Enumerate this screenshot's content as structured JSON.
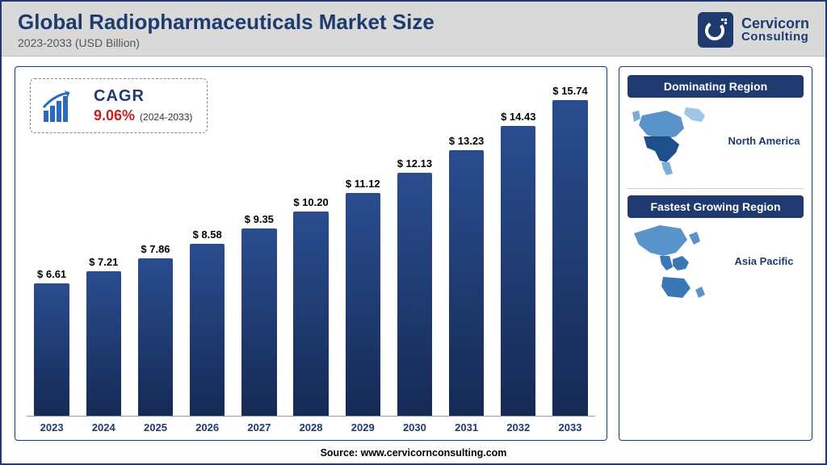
{
  "header": {
    "title": "Global Radiopharmaceuticals Market Size",
    "subtitle": "2023-2033 (USD Billion)",
    "brand_line1": "Cervicorn",
    "brand_line2": "Consulting"
  },
  "cagr": {
    "label": "CAGR",
    "value": "9.06%",
    "period": "(2024-2033)",
    "icon_color": "#2a6bbf",
    "value_color": "#c62020"
  },
  "chart": {
    "type": "bar",
    "years": [
      "2023",
      "2024",
      "2025",
      "2026",
      "2027",
      "2028",
      "2029",
      "2030",
      "2031",
      "2032",
      "2033"
    ],
    "values": [
      6.61,
      7.21,
      7.86,
      8.58,
      9.35,
      10.2,
      11.12,
      12.13,
      13.23,
      14.43,
      15.74
    ],
    "value_labels": [
      "$ 6.61",
      "$ 7.21",
      "$ 7.86",
      "$ 8.58",
      "$ 9.35",
      "$ 10.20",
      "$ 11.12",
      "$ 12.13",
      "$ 13.23",
      "$ 14.43",
      "$ 15.74"
    ],
    "ylim": [
      0,
      16.5
    ],
    "bar_gradient_top": "#2a4d8f",
    "bar_gradient_bottom": "#152a55",
    "bar_width_ratio": 0.8,
    "label_fontsize": 13,
    "year_color": "#1e3a6e",
    "value_label_color": "#000000",
    "background_color": "#ffffff"
  },
  "regions": {
    "dominating_header": "Dominating Region",
    "dominating_name": "North America",
    "fastest_header": "Fastest Growing Region",
    "fastest_name": "Asia Pacific",
    "header_bg": "#1e3a6e",
    "map_fill": "#2a6bbf"
  },
  "footer": {
    "source": "Source: www.cervicornconsulting.com"
  },
  "colors": {
    "frame_border": "#1e3a6e",
    "header_bg": "#d9d9d9",
    "title_color": "#1e3a6e"
  }
}
